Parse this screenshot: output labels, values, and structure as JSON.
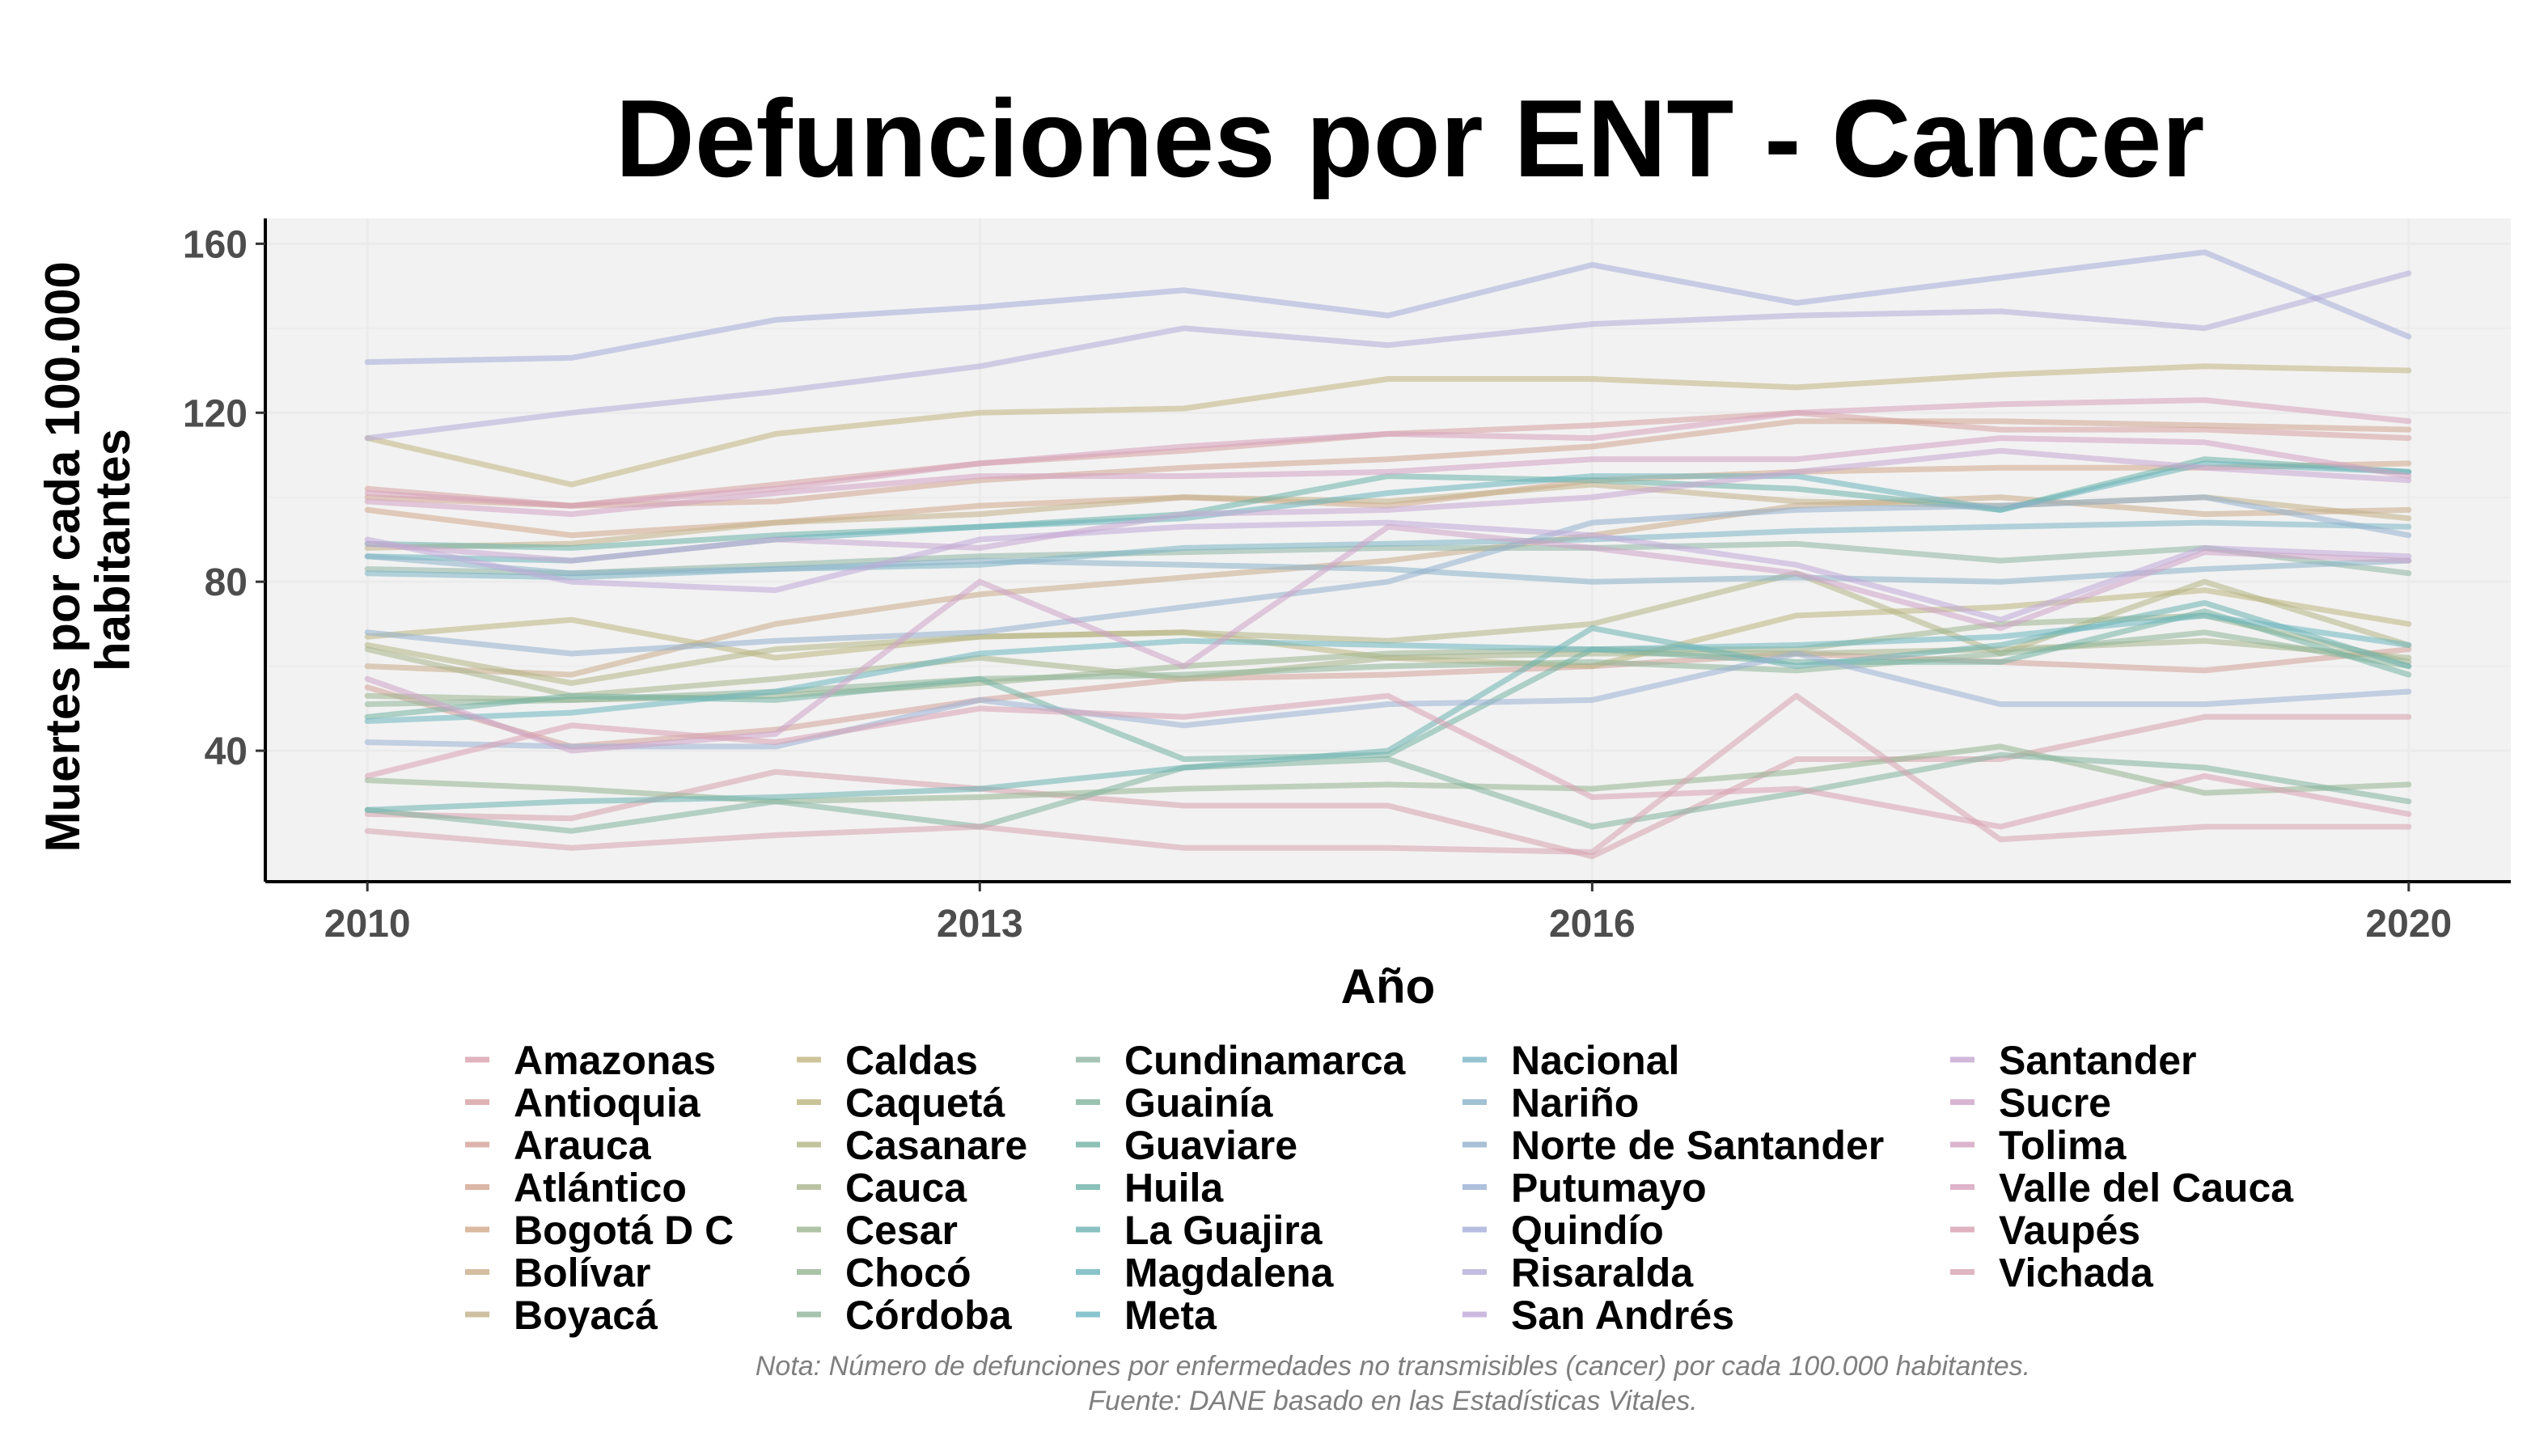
{
  "chart_data": {
    "type": "line",
    "title": "Defunciones por ENT - Cancer",
    "xlabel": "Año",
    "ylabel_lines": [
      "Muertes por cada 100.000",
      "habitantes"
    ],
    "x": [
      2010,
      2011,
      2012,
      2013,
      2014,
      2015,
      2016,
      2017,
      2018,
      2019,
      2020
    ],
    "x_ticks": [
      "2010",
      "2013",
      "2016",
      "2020"
    ],
    "y_ticks": [
      "40",
      "80",
      "120",
      "160"
    ],
    "xlim": [
      2009.5,
      2020.5
    ],
    "ylim": [
      9,
      166
    ],
    "grid": true,
    "legend_position": "bottom",
    "caption_lines": [
      "Nota: Número de defunciones por enfermedades no transmisibles (cancer) por cada 100.000 habitantes.",
      "Fuente: DANE basado en las Estadísticas Vitales."
    ],
    "series": [
      {
        "name": "Amazonas",
        "color": "#d7a0ad",
        "values": [
          25,
          24,
          35,
          31,
          27,
          27,
          15,
          38,
          38,
          48,
          48
        ]
      },
      {
        "name": "Antioquia",
        "color": "#d7a0a3",
        "values": [
          102,
          98,
          103,
          108,
          111,
          115,
          117,
          120,
          116,
          116,
          114
        ]
      },
      {
        "name": "Arauca",
        "color": "#d4a198",
        "values": [
          55,
          41,
          45,
          52,
          57,
          58,
          60,
          63,
          61,
          59,
          64
        ]
      },
      {
        "name": "Atlántico",
        "color": "#d2a490",
        "values": [
          100,
          98,
          99,
          104,
          107,
          109,
          112,
          118,
          118,
          117,
          116
        ]
      },
      {
        "name": "Bogotá D C",
        "color": "#d1a88a",
        "values": [
          97,
          91,
          94,
          98,
          100,
          98,
          104,
          106,
          107,
          107,
          108
        ]
      },
      {
        "name": "Bolívar",
        "color": "#c9ac88",
        "values": [
          60,
          58,
          70,
          77,
          81,
          85,
          91,
          98,
          100,
          96,
          97
        ]
      },
      {
        "name": "Boyacá",
        "color": "#c2b088",
        "values": [
          88,
          89,
          94,
          96,
          100,
          99,
          103,
          99,
          98,
          100,
          95
        ]
      },
      {
        "name": "Caldas",
        "color": "#c2b480",
        "values": [
          114,
          103,
          115,
          120,
          121,
          128,
          128,
          126,
          129,
          131,
          130
        ]
      },
      {
        "name": "Caquetá",
        "color": "#bcb47e",
        "values": [
          67,
          71,
          62,
          67,
          68,
          62,
          60,
          72,
          74,
          78,
          70
        ]
      },
      {
        "name": "Casanare",
        "color": "#b2b584",
        "values": [
          65,
          56,
          64,
          67,
          68,
          66,
          70,
          82,
          63,
          80,
          65
        ]
      },
      {
        "name": "Cauca",
        "color": "#a8b48b",
        "values": [
          64,
          53,
          57,
          62,
          57,
          62,
          63,
          63,
          64,
          66,
          62
        ]
      },
      {
        "name": "Cesar",
        "color": "#9cb48e",
        "values": [
          53,
          52,
          53,
          56,
          60,
          63,
          64,
          64,
          70,
          72,
          61
        ]
      },
      {
        "name": "Chocó",
        "color": "#94b490",
        "values": [
          33,
          31,
          28,
          29,
          31,
          32,
          31,
          35,
          41,
          30,
          32
        ]
      },
      {
        "name": "Córdoba",
        "color": "#8eb498",
        "values": [
          51,
          52,
          54,
          57,
          58,
          60,
          61,
          59,
          63,
          68,
          60
        ]
      },
      {
        "name": "Cundinamarca",
        "color": "#8eb5a3",
        "values": [
          83,
          82,
          84,
          86,
          87,
          88,
          88,
          89,
          85,
          88,
          82
        ]
      },
      {
        "name": "Guainía",
        "color": "#81b39e",
        "values": [
          26,
          21,
          28,
          22,
          36,
          38,
          22,
          30,
          39,
          36,
          28
        ]
      },
      {
        "name": "Guaviare",
        "color": "#72b2a3",
        "values": [
          48,
          53,
          52,
          57,
          38,
          39,
          64,
          61,
          61,
          73,
          58
        ]
      },
      {
        "name": "Huila",
        "color": "#6bb2a7",
        "values": [
          89,
          88,
          91,
          93,
          96,
          105,
          104,
          102,
          97,
          109,
          106
        ]
      },
      {
        "name": "La Guajira",
        "color": "#6ab2b0",
        "values": [
          26,
          28,
          29,
          31,
          36,
          40,
          69,
          60,
          65,
          75,
          60
        ]
      },
      {
        "name": "Magdalena",
        "color": "#6ab5bb",
        "values": [
          86,
          85,
          90,
          93,
          95,
          101,
          105,
          105,
          97,
          108,
          106
        ]
      },
      {
        "name": "Meta",
        "color": "#6cb6c0",
        "values": [
          47,
          49,
          54,
          63,
          66,
          65,
          64,
          65,
          67,
          72,
          65
        ]
      },
      {
        "name": "Nacional",
        "color": "#7bb5c5",
        "values": [
          82,
          81,
          83,
          84,
          88,
          89,
          90,
          92,
          93,
          94,
          93
        ]
      },
      {
        "name": "Nariño",
        "color": "#8ab2c8",
        "values": [
          86,
          82,
          83,
          85,
          84,
          83,
          80,
          81,
          80,
          83,
          85
        ]
      },
      {
        "name": "Norte de Santander",
        "color": "#94b0cd",
        "values": [
          68,
          63,
          66,
          68,
          74,
          80,
          94,
          97,
          98,
          100,
          91
        ]
      },
      {
        "name": "Putumayo",
        "color": "#9ab0d3",
        "values": [
          42,
          41,
          41,
          52,
          46,
          51,
          52,
          63,
          51,
          51,
          54
        ]
      },
      {
        "name": "Quindío",
        "color": "#a5acd8",
        "values": [
          132,
          133,
          142,
          145,
          149,
          143,
          155,
          146,
          152,
          158,
          138
        ]
      },
      {
        "name": "Risaralda",
        "color": "#b4acd8",
        "values": [
          114,
          120,
          125,
          131,
          140,
          136,
          141,
          143,
          144,
          140,
          153
        ]
      },
      {
        "name": "San Andrés",
        "color": "#bfa8d8",
        "values": [
          90,
          80,
          78,
          90,
          93,
          94,
          91,
          84,
          71,
          88,
          86
        ]
      },
      {
        "name": "Santander",
        "color": "#c6a6d2",
        "values": [
          89,
          85,
          90,
          88,
          96,
          97,
          100,
          106,
          111,
          107,
          104
        ]
      },
      {
        "name": "Sucre",
        "color": "#cea3c8",
        "values": [
          57,
          40,
          44,
          80,
          60,
          93,
          88,
          82,
          69,
          87,
          85
        ]
      },
      {
        "name": "Tolima",
        "color": "#d3a1c2",
        "values": [
          99,
          96,
          101,
          105,
          105,
          106,
          109,
          109,
          114,
          113,
          105
        ]
      },
      {
        "name": "Valle del Cauca",
        "color": "#d7a0bb",
        "values": [
          101,
          98,
          102,
          108,
          112,
          115,
          114,
          120,
          122,
          123,
          118
        ]
      },
      {
        "name": "Vaupés",
        "color": "#d8a0b2",
        "values": [
          34,
          46,
          42,
          50,
          48,
          53,
          29,
          31,
          22,
          34,
          25
        ]
      },
      {
        "name": "Vichada",
        "color": "#d7a2b0",
        "values": [
          21,
          17,
          20,
          22,
          17,
          17,
          16,
          53,
          19,
          22,
          22
        ]
      }
    ]
  }
}
